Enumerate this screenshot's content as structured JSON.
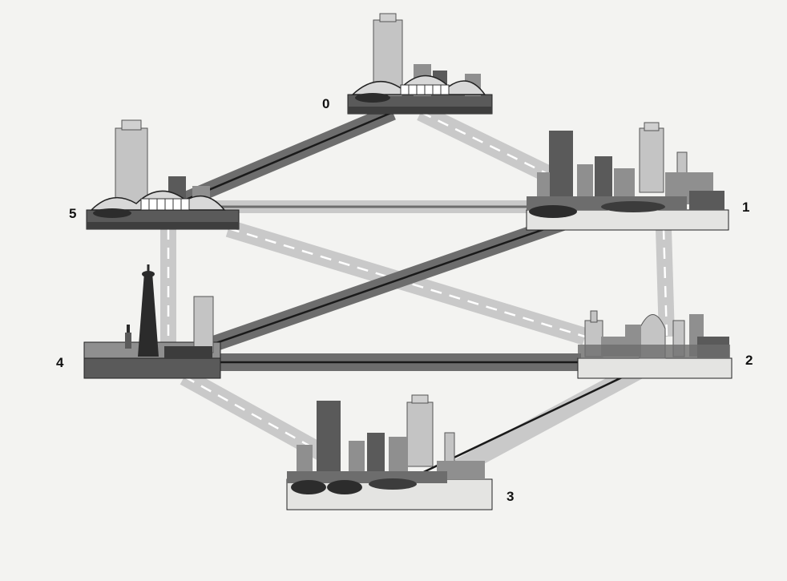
{
  "diagram": {
    "nodes": [
      {
        "id": "0",
        "label": "0"
      },
      {
        "id": "1",
        "label": "1"
      },
      {
        "id": "2",
        "label": "2"
      },
      {
        "id": "3",
        "label": "3"
      },
      {
        "id": "4",
        "label": "4"
      },
      {
        "id": "5",
        "label": "5"
      }
    ],
    "edges": [
      {
        "from": "0",
        "to": "5",
        "style": "dark-solid"
      },
      {
        "from": "0",
        "to": "1",
        "style": "light-dashed"
      },
      {
        "from": "5",
        "to": "1",
        "style": "light-solid"
      },
      {
        "from": "5",
        "to": "4",
        "style": "light-dashed"
      },
      {
        "from": "5",
        "to": "2",
        "style": "light-dashed"
      },
      {
        "from": "1",
        "to": "4",
        "style": "dark-solid"
      },
      {
        "from": "1",
        "to": "2",
        "style": "light-dashed"
      },
      {
        "from": "4",
        "to": "2",
        "style": "dark-solid"
      },
      {
        "from": "4",
        "to": "3",
        "style": "light-dashed"
      },
      {
        "from": "2",
        "to": "3",
        "style": "dark-solid-arrow"
      }
    ]
  },
  "colors": {
    "background": "#f3f3f1",
    "dark_road": "#6d6d6d",
    "light_road": "#c9c9c9",
    "road_line": "#1a1a1a",
    "dash_line": "#ffffff",
    "city_dark": "#5a5a5a",
    "city_mid": "#8f8f8f",
    "city_light": "#c4c4c4",
    "base_light": "#e4e4e2"
  }
}
